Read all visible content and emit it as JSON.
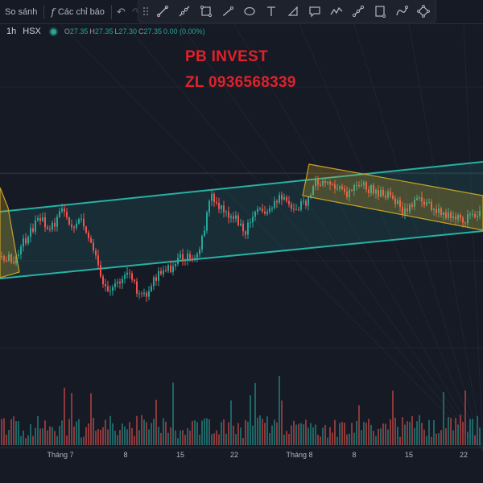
{
  "toolbar": {
    "compare_label": "So sánh",
    "indicators_label": "Các chỉ báo",
    "undo_icon": "undo-icon",
    "redo_icon": "redo-icon",
    "drawing_tools": [
      "trend-line-icon",
      "ray-icon",
      "rectangle-icon",
      "brush-icon",
      "ellipse-icon",
      "text-icon",
      "triangle-icon",
      "callout-icon",
      "path-icon",
      "measure-icon",
      "note-icon",
      "curve-icon",
      "polygon-icon"
    ]
  },
  "legend": {
    "timeframe": "1h",
    "exchange": "HSX",
    "open_label": "O",
    "open": "27.35",
    "high_label": "H",
    "high": "27.35",
    "low_label": "L",
    "low": "27.30",
    "close_label": "C",
    "close": "27.35",
    "change": "0.00 (0.00%)"
  },
  "watermark": {
    "line1": "PB INVEST",
    "line2": "ZL 0936568339"
  },
  "colors": {
    "background": "#161a25",
    "up": "#26a69a",
    "down": "#ef5350",
    "channel": "#26b2a3",
    "flag": "#c9a227",
    "watermark": "#e0212a"
  },
  "chart_data": {
    "type": "candlestick",
    "x_tick_labels": [
      "Tháng 7",
      "8",
      "15",
      "22",
      "Tháng 8",
      "8",
      "15",
      "22"
    ],
    "last": {
      "open": 27.35,
      "high": 27.35,
      "low": 27.3,
      "close": 27.35
    },
    "annotations": [
      "ascending channel",
      "descending flag box",
      "left flag box"
    ],
    "volume": true
  }
}
